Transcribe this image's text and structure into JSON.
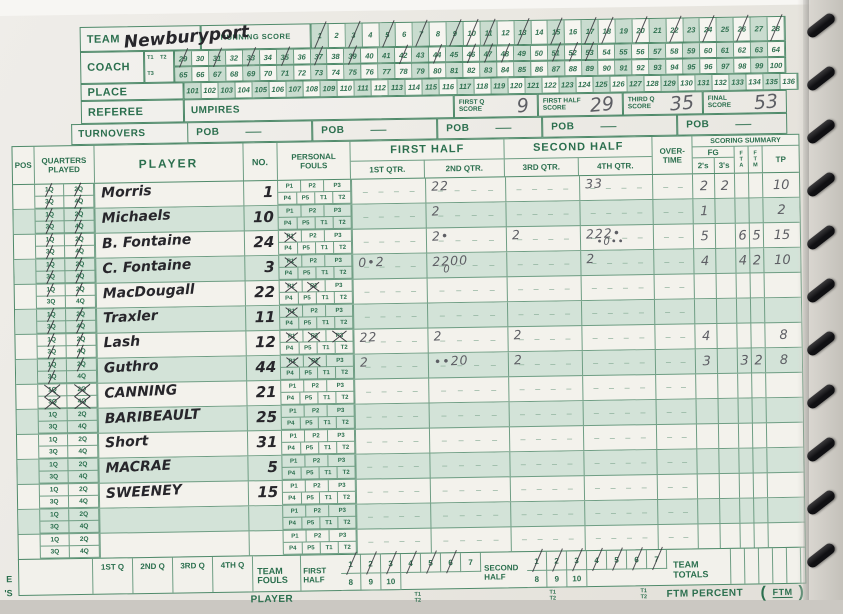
{
  "palette": {
    "green": "#2b6f4e",
    "shade": "#c9dccf",
    "pencil": "#5d5e64",
    "pen": "#27262b"
  },
  "top": {
    "team_label": "TEAM",
    "team_name": "Newburyport",
    "coach_label": "COACH",
    "t1": "T1",
    "t2": "T2",
    "t3": "T3",
    "place_label": "PLACE",
    "referee_label": "REFEREE",
    "umpires_label": "UMPIRES"
  },
  "running_score": {
    "label": "RUNNING SCORE",
    "rows": [
      {
        "start": 1,
        "end": 28,
        "crossed": [
          1,
          3,
          5,
          7,
          9,
          10,
          11,
          13,
          15,
          17,
          18,
          20,
          22,
          24,
          26,
          28
        ]
      },
      {
        "start": 29,
        "end": 64,
        "crossed": [
          29,
          31,
          33,
          35,
          37,
          39,
          42,
          44,
          46,
          47,
          48,
          51,
          52,
          53
        ]
      },
      {
        "start": 65,
        "end": 100,
        "crossed": []
      },
      {
        "start": 101,
        "end": 136,
        "crossed": []
      }
    ]
  },
  "scores": [
    {
      "label1": "FIRST Q",
      "label2": "SCORE",
      "value": "9"
    },
    {
      "label1": "FIRST HALF",
      "label2": "SCORE",
      "value": "29"
    },
    {
      "label1": "THIRD Q",
      "label2": "SCORE",
      "value": "35"
    },
    {
      "label1": "FINAL",
      "label2": "SCORE",
      "value": "53"
    }
  ],
  "turnovers": {
    "label": "TURNOVERS",
    "pob": "POB",
    "dash": "—"
  },
  "header": {
    "pos": "POS",
    "quarters": "QUARTERS PLAYED",
    "player": "PLAYER",
    "no": "NO.",
    "fouls": "PERSONAL FOULS",
    "first_half": "FIRST HALF",
    "q1": "1ST QTR.",
    "q2": "2ND QTR.",
    "second_half": "SECOND HALF",
    "q3": "3RD QTR.",
    "q4": "4TH QTR.",
    "ot1": "OVER-",
    "ot2": "TIME",
    "scoring": "SCORING SUMMARY",
    "fg": "FG",
    "s2": "2's",
    "s3": "3's",
    "fta": "F T A",
    "ftm": "F T M",
    "tp": "TP"
  },
  "form": {
    "q_labels": [
      "1Q",
      "2Q",
      "3Q",
      "4Q"
    ],
    "foul_top": [
      "P1",
      "P2",
      "P3"
    ],
    "foul_bottom": [
      "P4",
      "P5",
      "T1",
      "T2"
    ],
    "dash": "–"
  },
  "players": [
    {
      "name": "Morris",
      "no": "1",
      "q": [
        1,
        1,
        1,
        1
      ],
      "fouls": [],
      "q2": [
        "22",
        ""
      ],
      "q4": [
        "33",
        ""
      ],
      "s2": "2",
      "s3": "2",
      "tp": "10"
    },
    {
      "name": "Michaels",
      "no": "10",
      "q": [
        1,
        1,
        1,
        1
      ],
      "fouls": [],
      "q2": [
        "2",
        ""
      ],
      "s2": "1",
      "tp": "2"
    },
    {
      "name": "B. Fontaine",
      "no": "24",
      "q": [
        1,
        1,
        1,
        1
      ],
      "fouls": [
        "P1"
      ],
      "q2": [
        "2•",
        ""
      ],
      "q3": [
        "2",
        ""
      ],
      "q4": [
        "222•",
        "•0••"
      ],
      "s2": "5",
      "fta": "6",
      "ftm": "5",
      "tp": "15"
    },
    {
      "name": "C. Fontaine",
      "no": "3",
      "q": [
        1,
        1,
        1,
        1
      ],
      "fouls": [
        "P1"
      ],
      "q1": [
        "0•2",
        ""
      ],
      "q2": [
        "2200",
        "0"
      ],
      "q4": [
        "2",
        ""
      ],
      "s2": "4",
      "fta": "4",
      "ftm": "2",
      "tp": "10"
    },
    {
      "name": "MacDougall",
      "no": "22",
      "q": [
        1,
        1,
        0,
        0
      ],
      "fouls": [
        "P1",
        "P2"
      ]
    },
    {
      "name": "Traxler",
      "no": "11",
      "q": [
        1,
        1,
        1,
        1
      ],
      "fouls": [
        "P1"
      ]
    },
    {
      "name": "Lash",
      "no": "12",
      "q": [
        1,
        1,
        1,
        1
      ],
      "fouls": [
        "P1",
        "P2",
        "P3"
      ],
      "q1": [
        "22",
        ""
      ],
      "q2": [
        "2",
        ""
      ],
      "q3": [
        "2",
        ""
      ],
      "s2": "4",
      "tp": "8"
    },
    {
      "name": "Guthro",
      "no": "44",
      "q": [
        1,
        1,
        1,
        0
      ],
      "fouls": [
        "P1",
        "P2"
      ],
      "q1": [
        "2",
        ""
      ],
      "q2": [
        "••20",
        ""
      ],
      "q3": [
        "2",
        ""
      ],
      "s2": "3",
      "fta": "3",
      "ftm": "2",
      "tp": "8"
    },
    {
      "name": "CANNING",
      "no": "21",
      "q": [
        1,
        1,
        1,
        1
      ],
      "qx": true,
      "fouls": []
    },
    {
      "name": "BARIBEAULT",
      "no": "25",
      "q": [
        0,
        0,
        0,
        0
      ],
      "fouls": []
    },
    {
      "name": "Short",
      "no": "31",
      "q": [
        0,
        0,
        0,
        0
      ],
      "fouls": []
    },
    {
      "name": "MACRAE",
      "no": "5",
      "q": [
        0,
        0,
        0,
        0
      ],
      "fouls": []
    },
    {
      "name": "SWEENEY",
      "no": "15",
      "q": [
        0,
        0,
        0,
        0
      ],
      "fouls": []
    },
    {
      "name": "",
      "no": "",
      "q": [
        0,
        0,
        0,
        0
      ],
      "fouls": []
    },
    {
      "name": "",
      "no": "",
      "q": [
        0,
        0,
        0,
        0
      ],
      "fouls": []
    }
  ],
  "team_fouls": {
    "team": "TEAM",
    "fouls": "FOULS",
    "first1": "FIRST",
    "first2": "HALF",
    "second1": "SECOND",
    "second2": "HALF",
    "top": [
      "1",
      "2",
      "3",
      "4",
      "5",
      "6",
      "7"
    ],
    "bottom": [
      "8",
      "9",
      "10"
    ],
    "first_crossed": [
      "1",
      "2",
      "3",
      "4",
      "5",
      "6"
    ],
    "second_crossed": [
      "1",
      "2",
      "3",
      "4",
      "5",
      "6",
      "7"
    ],
    "totals1": "TEAM",
    "totals2": "TOTALS"
  },
  "bottom": {
    "q_labels": [
      "1ST Q",
      "2ND Q",
      "3RD Q",
      "4TH Q"
    ],
    "player": "PLAYER",
    "t1": "T1",
    "t2": "T2",
    "ftm_percent": "FTM PERCENT",
    "ftm": "FTM"
  },
  "edge_letters": [
    "E",
    "'S"
  ]
}
